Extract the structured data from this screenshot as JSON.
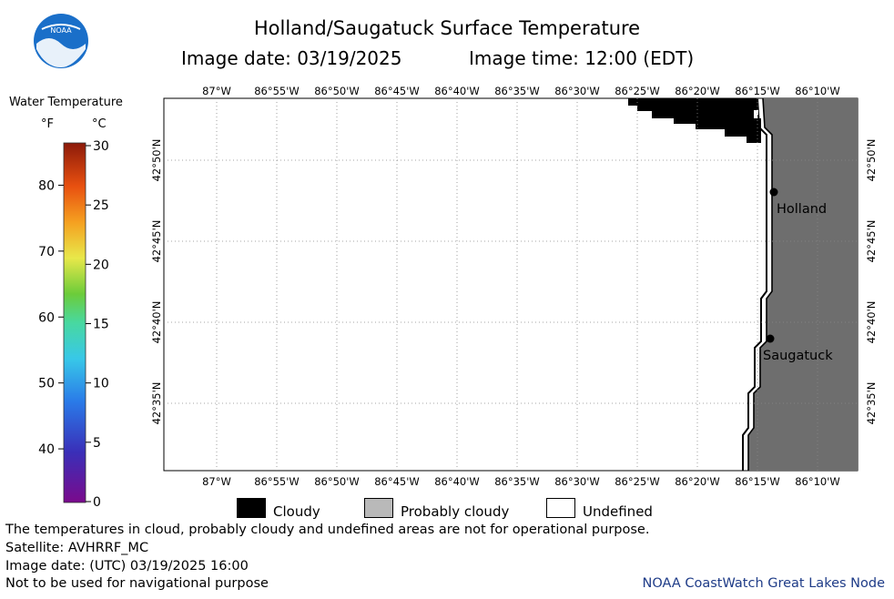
{
  "header": {
    "title": "Holland/Saugatuck Surface Temperature",
    "image_date_label": "Image date: 03/19/2025",
    "image_time_label": "Image time: 12:00 (EDT)"
  },
  "logo": {
    "text": "NOAA",
    "icon": "noaa-logo-icon",
    "color_blue": "#1a6fc9"
  },
  "scale": {
    "title": "Water Temperature",
    "unit_f": "°F",
    "unit_c": "°C",
    "f_ticks": [
      {
        "label": "80",
        "f": 80
      },
      {
        "label": "70",
        "f": 70
      },
      {
        "label": "60",
        "f": 60
      },
      {
        "label": "50",
        "f": 50
      },
      {
        "label": "40",
        "f": 40
      }
    ],
    "c_ticks": [
      {
        "label": "30",
        "c": 30
      },
      {
        "label": "25",
        "c": 25
      },
      {
        "label": "20",
        "c": 20
      },
      {
        "label": "15",
        "c": 15
      },
      {
        "label": "10",
        "c": 10
      },
      {
        "label": "5",
        "c": 5
      },
      {
        "label": "0",
        "c": 0
      }
    ],
    "c_min": 0,
    "c_max": 30
  },
  "map": {
    "lon_labels": [
      "87°W",
      "86°55'W",
      "86°50'W",
      "86°45'W",
      "86°40'W",
      "86°35'W",
      "86°30'W",
      "86°25'W",
      "86°20'W",
      "86°15'W",
      "86°10'W"
    ],
    "lat_labels": [
      "42°50'N",
      "42°45'N",
      "42°40'N",
      "42°35'N"
    ],
    "places": [
      {
        "name": "Holland"
      },
      {
        "name": "Saugatuck"
      }
    ],
    "land_color": "#6e6e6e",
    "cloud_color": "#000000"
  },
  "legend": {
    "cloudy": "Cloudy",
    "probably_cloudy": "Probably cloudy",
    "undefined": "Undefined"
  },
  "footer": {
    "disclaimer": "The temperatures in cloud, probably cloudy and undefined areas are not for operational purpose.",
    "satellite": "Satellite: AVHRRF_MC",
    "utc_date": "Image date: (UTC) 03/19/2025  16:00",
    "nav_warning": "Not to be used for navigational purpose",
    "credit": "NOAA CoastWatch Great Lakes Node"
  }
}
